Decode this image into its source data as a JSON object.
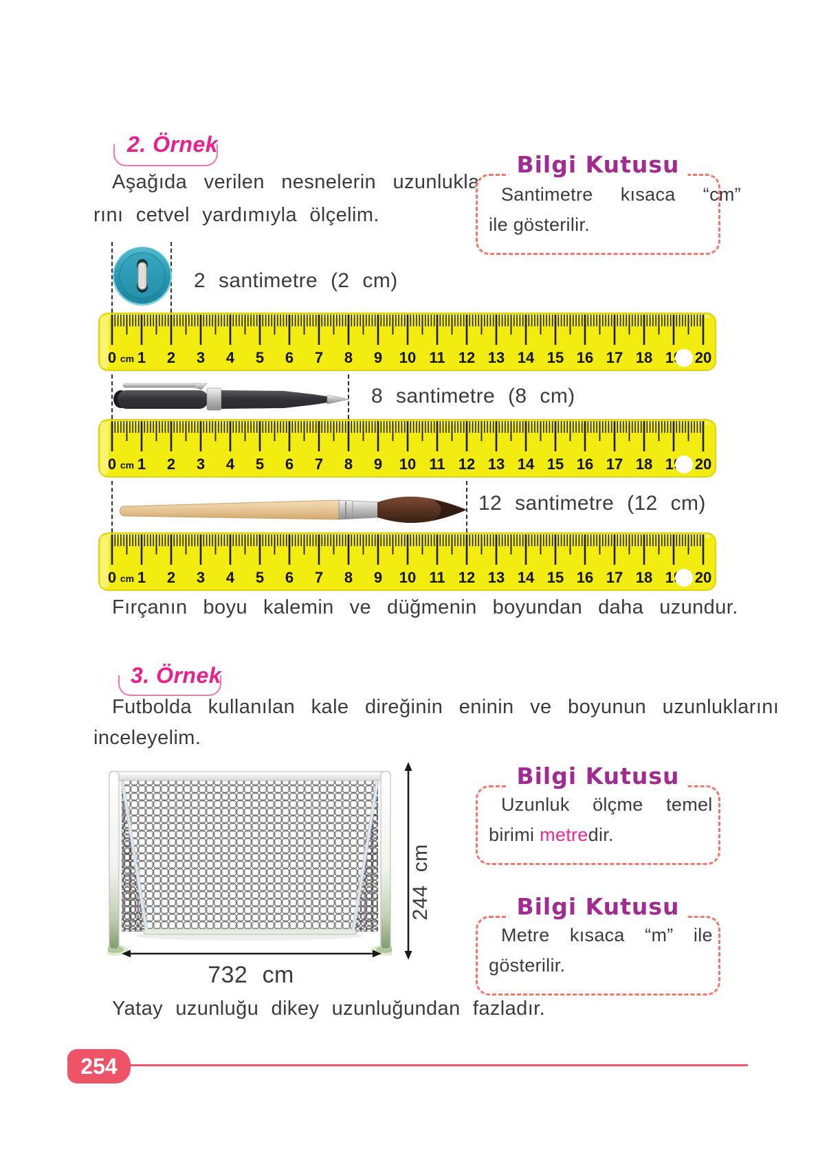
{
  "page_number": "254",
  "colors": {
    "heading_pink": "#ec1e8d",
    "info_title_purple": "#a12b90",
    "info_border_salmon": "#f4776e",
    "ruler_yellow": "#f3ec11",
    "highlight_pink": "#f5259b",
    "badge_pink": "#ee5368",
    "button_teal": "#2d9cb4"
  },
  "ruler": {
    "unit": "cm",
    "min": 0,
    "max": 20,
    "numbers": [
      "0",
      "1",
      "2",
      "3",
      "4",
      "5",
      "6",
      "7",
      "8",
      "9",
      "10",
      "11",
      "12",
      "13",
      "14",
      "15",
      "16",
      "17",
      "18",
      "19",
      "20"
    ]
  },
  "example2": {
    "heading": "2. Örnek",
    "para_line1": "Aşağıda verilen nesnelerin uzunlukla-",
    "para_line2": "rını cetvel yardımıyla ölçelim.",
    "measurements": [
      {
        "object": "button",
        "cm": 2,
        "label": "2 santimetre (2 cm)"
      },
      {
        "object": "pen",
        "cm": 8,
        "label": "8 santimetre (8 cm)"
      },
      {
        "object": "paintbrush",
        "cm": 12,
        "label": "12 santimetre (12 cm)"
      }
    ],
    "conclusion": "Fırçanın boyu kalemin ve düğmenin boyundan daha uzundur."
  },
  "example3": {
    "heading": "3. Örnek",
    "para_line1": "Futbolda kullanılan kale direğinin eninin ve boyunun uzunluklarını",
    "para_line2": "inceleyelim.",
    "width_label": "732 cm",
    "height_label": "244 cm",
    "conclusion": "Yatay uzunluğu dikey uzunluğundan fazladır."
  },
  "info_boxes": [
    {
      "title": "Bilgi Kutusu",
      "line1": "Santimetre kısaca “cm”",
      "line2": "ile gösterilir."
    },
    {
      "title": "Bilgi Kutusu",
      "line1": "Uzunluk ölçme temel",
      "line2_part1": "birimi ",
      "line2_highlight": "metre",
      "line2_part2": "dir."
    },
    {
      "title": "Bilgi Kutusu",
      "line1": "Metre kısaca “m” ile",
      "line2": "gösterilir."
    }
  ]
}
